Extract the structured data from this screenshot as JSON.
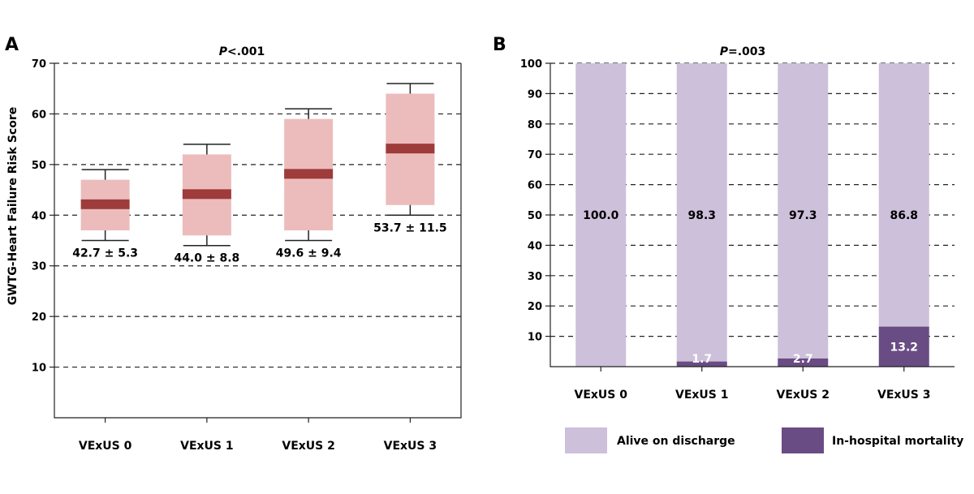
{
  "chart_data": [
    {
      "panel": "A",
      "type": "box",
      "title": "P<.001",
      "title_italic": "P",
      "title_rest": "<.001",
      "ylabel": "GWTG-Heart Failure Risk Score",
      "ylim": [
        0,
        70
      ],
      "yticks": [
        10,
        20,
        30,
        40,
        50,
        60,
        70
      ],
      "grid": true,
      "categories": [
        "VExUS 0",
        "VExUS 1",
        "VExUS 2",
        "VExUS 3"
      ],
      "boxes": [
        {
          "whisker_low": 35,
          "q1": 37,
          "median": 42,
          "q3": 47,
          "whisker_high": 49,
          "label": "42.7 ± 5.3"
        },
        {
          "whisker_low": 34,
          "q1": 36,
          "median": 44,
          "q3": 52,
          "whisker_high": 54,
          "label": "44.0 ± 8.8"
        },
        {
          "whisker_low": 35,
          "q1": 37,
          "median": 48,
          "q3": 59,
          "whisker_high": 61,
          "label": "49.6 ± 9.4"
        },
        {
          "whisker_low": 40,
          "q1": 42,
          "median": 53,
          "q3": 64,
          "whisker_high": 66,
          "label": "53.7 ± 11.5"
        }
      ],
      "colors": {
        "box": "#ecbcbc",
        "median": "#9e3b3b"
      }
    },
    {
      "panel": "B",
      "type": "bar",
      "stacked": true,
      "title": "P=.003",
      "title_italic": "P",
      "title_rest": "=.003",
      "ylim": [
        0,
        100
      ],
      "yticks": [
        10,
        20,
        30,
        40,
        50,
        60,
        70,
        80,
        90,
        100
      ],
      "grid": true,
      "categories": [
        "VExUS 0",
        "VExUS 1",
        "VExUS 2",
        "VExUS 3"
      ],
      "series": [
        {
          "name": "In-hospital mortality",
          "values": [
            0,
            1.7,
            2.7,
            13.2
          ],
          "labels": [
            "",
            "1.7",
            "2.7",
            "13.2"
          ],
          "color": "#6a4c84"
        },
        {
          "name": "Alive on discharge",
          "values": [
            100.0,
            98.3,
            97.3,
            86.8
          ],
          "labels": [
            "100.0",
            "98.3",
            "97.3",
            "86.8"
          ],
          "color": "#cdc0da"
        }
      ],
      "legend_placement": "bottom"
    }
  ]
}
